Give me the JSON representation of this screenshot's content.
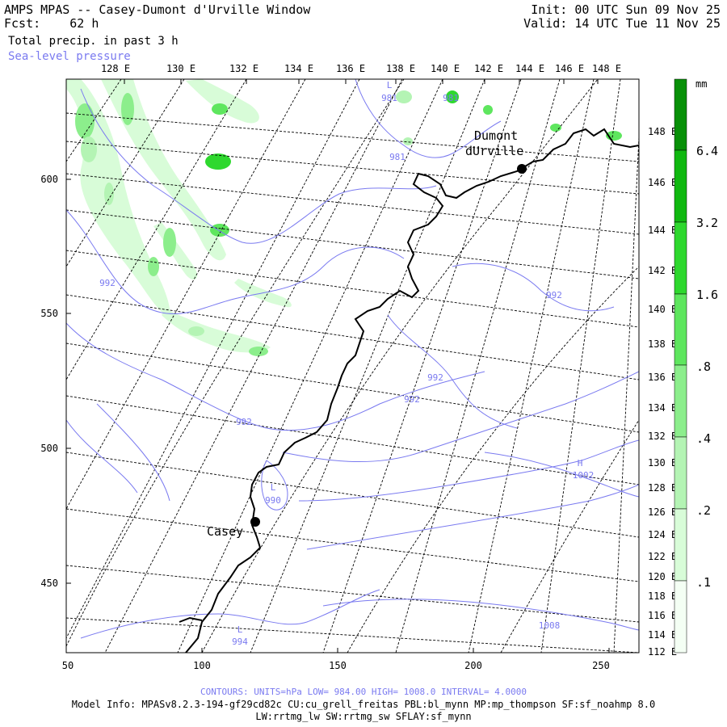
{
  "header": {
    "title": "AMPS MPAS -- Casey-Dumont d'Urville Window",
    "fcst_label": "Fcst:",
    "fcst_value": "62 h",
    "init": "Init: 00 UTC Sun 09 Nov 25",
    "valid": "Valid: 14 UTC Tue 11 Nov 25",
    "field": "Total precip. in past 3 h",
    "overlay": "Sea-level pressure"
  },
  "colors": {
    "contour": "#7a7af0",
    "coast": "#000000",
    "grid": "#000000",
    "precip_scale": [
      "#f4fff4",
      "#d8fcd8",
      "#b4f4b4",
      "#8cee8c",
      "#5ee65e",
      "#2ed82e",
      "#10b810",
      "#089008"
    ]
  },
  "axes": {
    "top_lon_labels": [
      "128 E",
      "130 E",
      "132 E",
      "134 E",
      "136 E",
      "138 E",
      "140 E",
      "142 E",
      "144 E",
      "146 E",
      "148 E"
    ],
    "right_lon_labels": [
      "148 E",
      "146 E",
      "144 E",
      "142 E",
      "140 E",
      "138 E",
      "136 E",
      "134 E",
      "132 E",
      "130 E",
      "128 E",
      "126 E",
      "124 E",
      "122 E",
      "120 E",
      "118 E",
      "116 E",
      "114 E",
      "112 E"
    ],
    "left_y_labels": [
      "600",
      "550",
      "500",
      "450"
    ],
    "bottom_x_labels": [
      "50",
      "100",
      "150",
      "200",
      "250"
    ]
  },
  "colorbar": {
    "unit": "mm",
    "levels": [
      "6.4",
      "3.2",
      "1.6",
      ".8",
      ".4",
      ".2",
      ".1"
    ]
  },
  "places": [
    {
      "name_line1": "Dumont",
      "name_line2": "dUrville"
    },
    {
      "name_line1": "Casey",
      "name_line2": ""
    }
  ],
  "pressure_labels": [
    {
      "text": "L",
      "sub": "981"
    },
    {
      "text": "",
      "sub": "981"
    },
    {
      "text": "",
      "sub": "981"
    },
    {
      "text": "",
      "sub": "992"
    },
    {
      "text": "",
      "sub": "992"
    },
    {
      "text": "",
      "sub": "992"
    },
    {
      "text": "",
      "sub": "992"
    },
    {
      "text": "",
      "sub": "992"
    },
    {
      "text": "L",
      "sub": "990"
    },
    {
      "text": "H",
      "sub": "1002"
    },
    {
      "text": "L",
      "sub": "994"
    },
    {
      "text": "",
      "sub": "1008"
    }
  ],
  "footer": {
    "contours": "CONTOURS:  UNITS=hPa  LOW=  984.00      HIGH=  1008.0      INTERVAL=   4.0000",
    "model_info": "Model Info: MPASv8.2.3-194-gf29cd82c CU:cu_grell_freitas PBL:bl_mynn MP:mp_thompson SF:sf_noahmp 8.0",
    "model_info2": "LW:rrtmg_lw SW:rrtmg_sw SFLAY:sf_mynn"
  }
}
